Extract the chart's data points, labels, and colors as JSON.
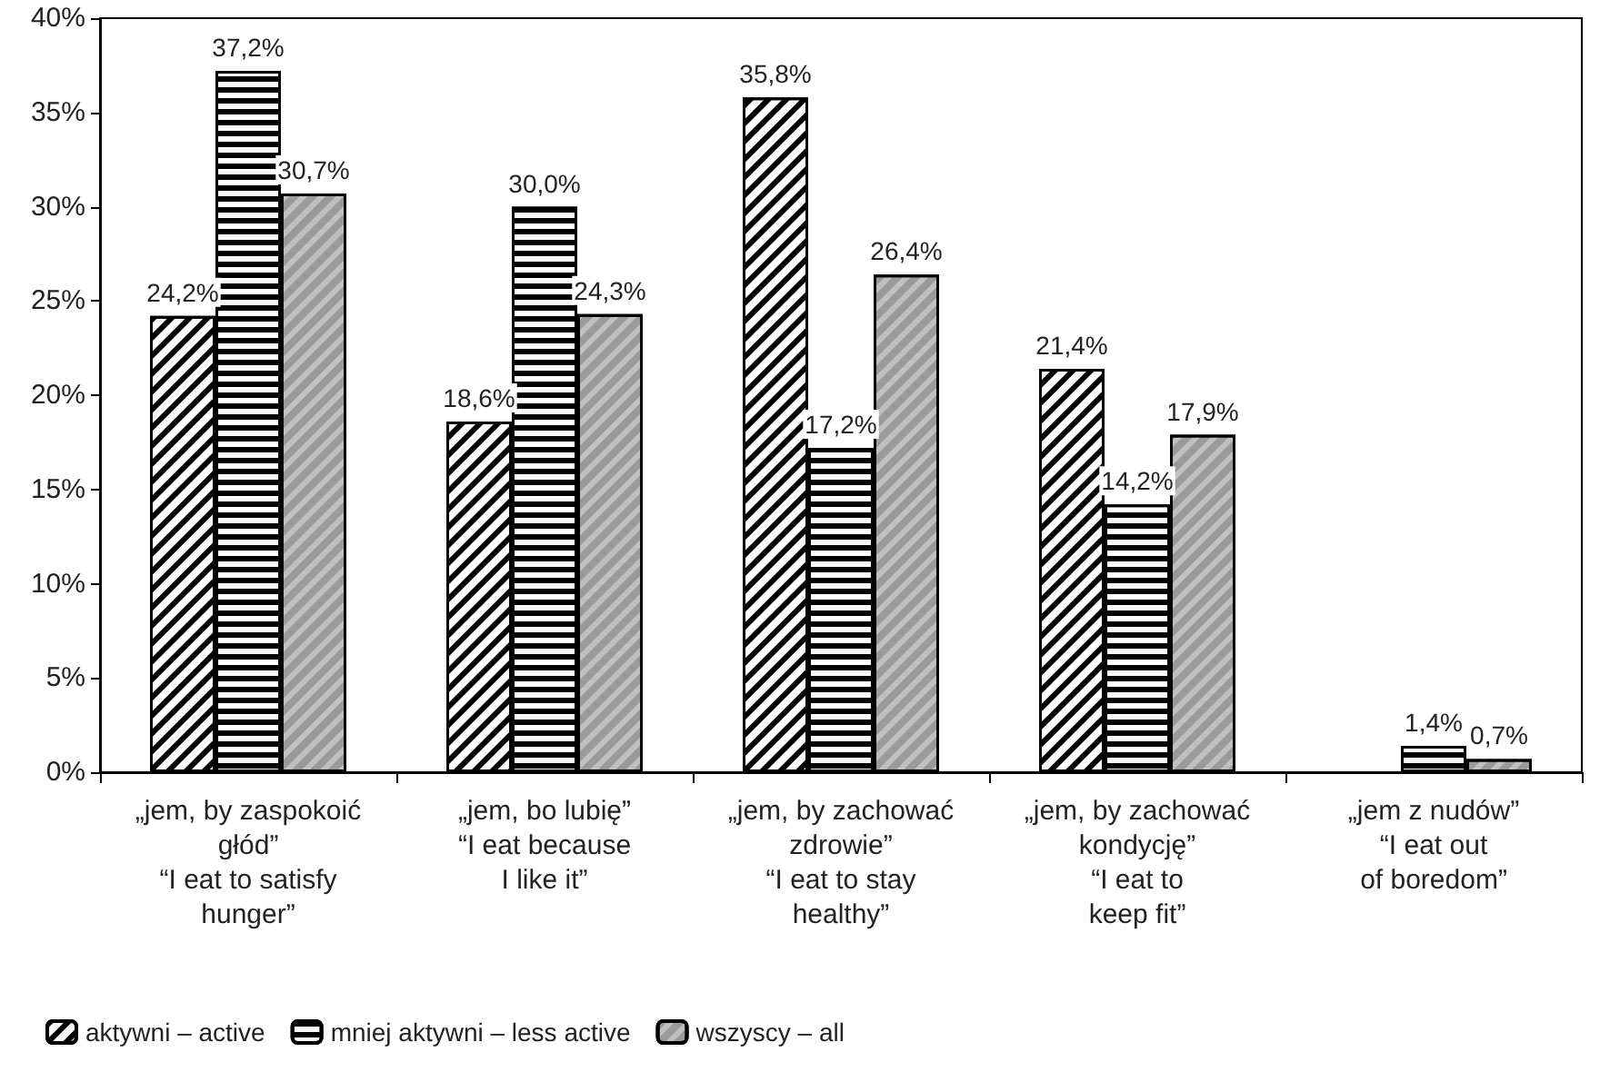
{
  "chart_data": {
    "type": "bar",
    "categories": [
      "„jem, by zaspokoić\ngłód”\n“I eat to satisfy\nhunger”",
      "„jem, bo lubię”\n“I eat because\nI like it”",
      "„jem, by zachować\nzdrowie”\n“I eat to stay\nhealthy”",
      "„jem, by zachować\nkondycję”\n“I eat to\nkeep fit”",
      "„jem z nudów”\n“I eat out\nof boredom”"
    ],
    "series": [
      {
        "name": "aktywni – active",
        "color": "#000000",
        "values": [
          24.2,
          18.6,
          35.8,
          21.4,
          null
        ],
        "value_labels": [
          "24,2%",
          "18,6%",
          "35,8%",
          "21,4%",
          null
        ]
      },
      {
        "name": "mniej aktywni – less active",
        "color": "#000000",
        "values": [
          37.2,
          30.0,
          17.2,
          14.2,
          1.4
        ],
        "value_labels": [
          "37,2%",
          "30,0%",
          "17,2%",
          "14,2%",
          "1,4%"
        ]
      },
      {
        "name": "wszyscy – all",
        "color": "#c0c0c0",
        "values": [
          30.7,
          24.3,
          26.4,
          17.9,
          0.7
        ],
        "value_labels": [
          "30,7%",
          "24,3%",
          "26,4%",
          "17,9%",
          "0,7%"
        ]
      }
    ],
    "ylim": [
      0,
      40
    ],
    "yticks": [
      {
        "value": 0,
        "label": "0%"
      },
      {
        "value": 5,
        "label": "5%"
      },
      {
        "value": 10,
        "label": "10%"
      },
      {
        "value": 15,
        "label": "15%"
      },
      {
        "value": 20,
        "label": "20%"
      },
      {
        "value": 25,
        "label": "25%"
      },
      {
        "value": 30,
        "label": "30%"
      },
      {
        "value": 35,
        "label": "35%"
      },
      {
        "value": 40,
        "label": "40%"
      }
    ],
    "grid": false,
    "legend": "bottom left"
  }
}
